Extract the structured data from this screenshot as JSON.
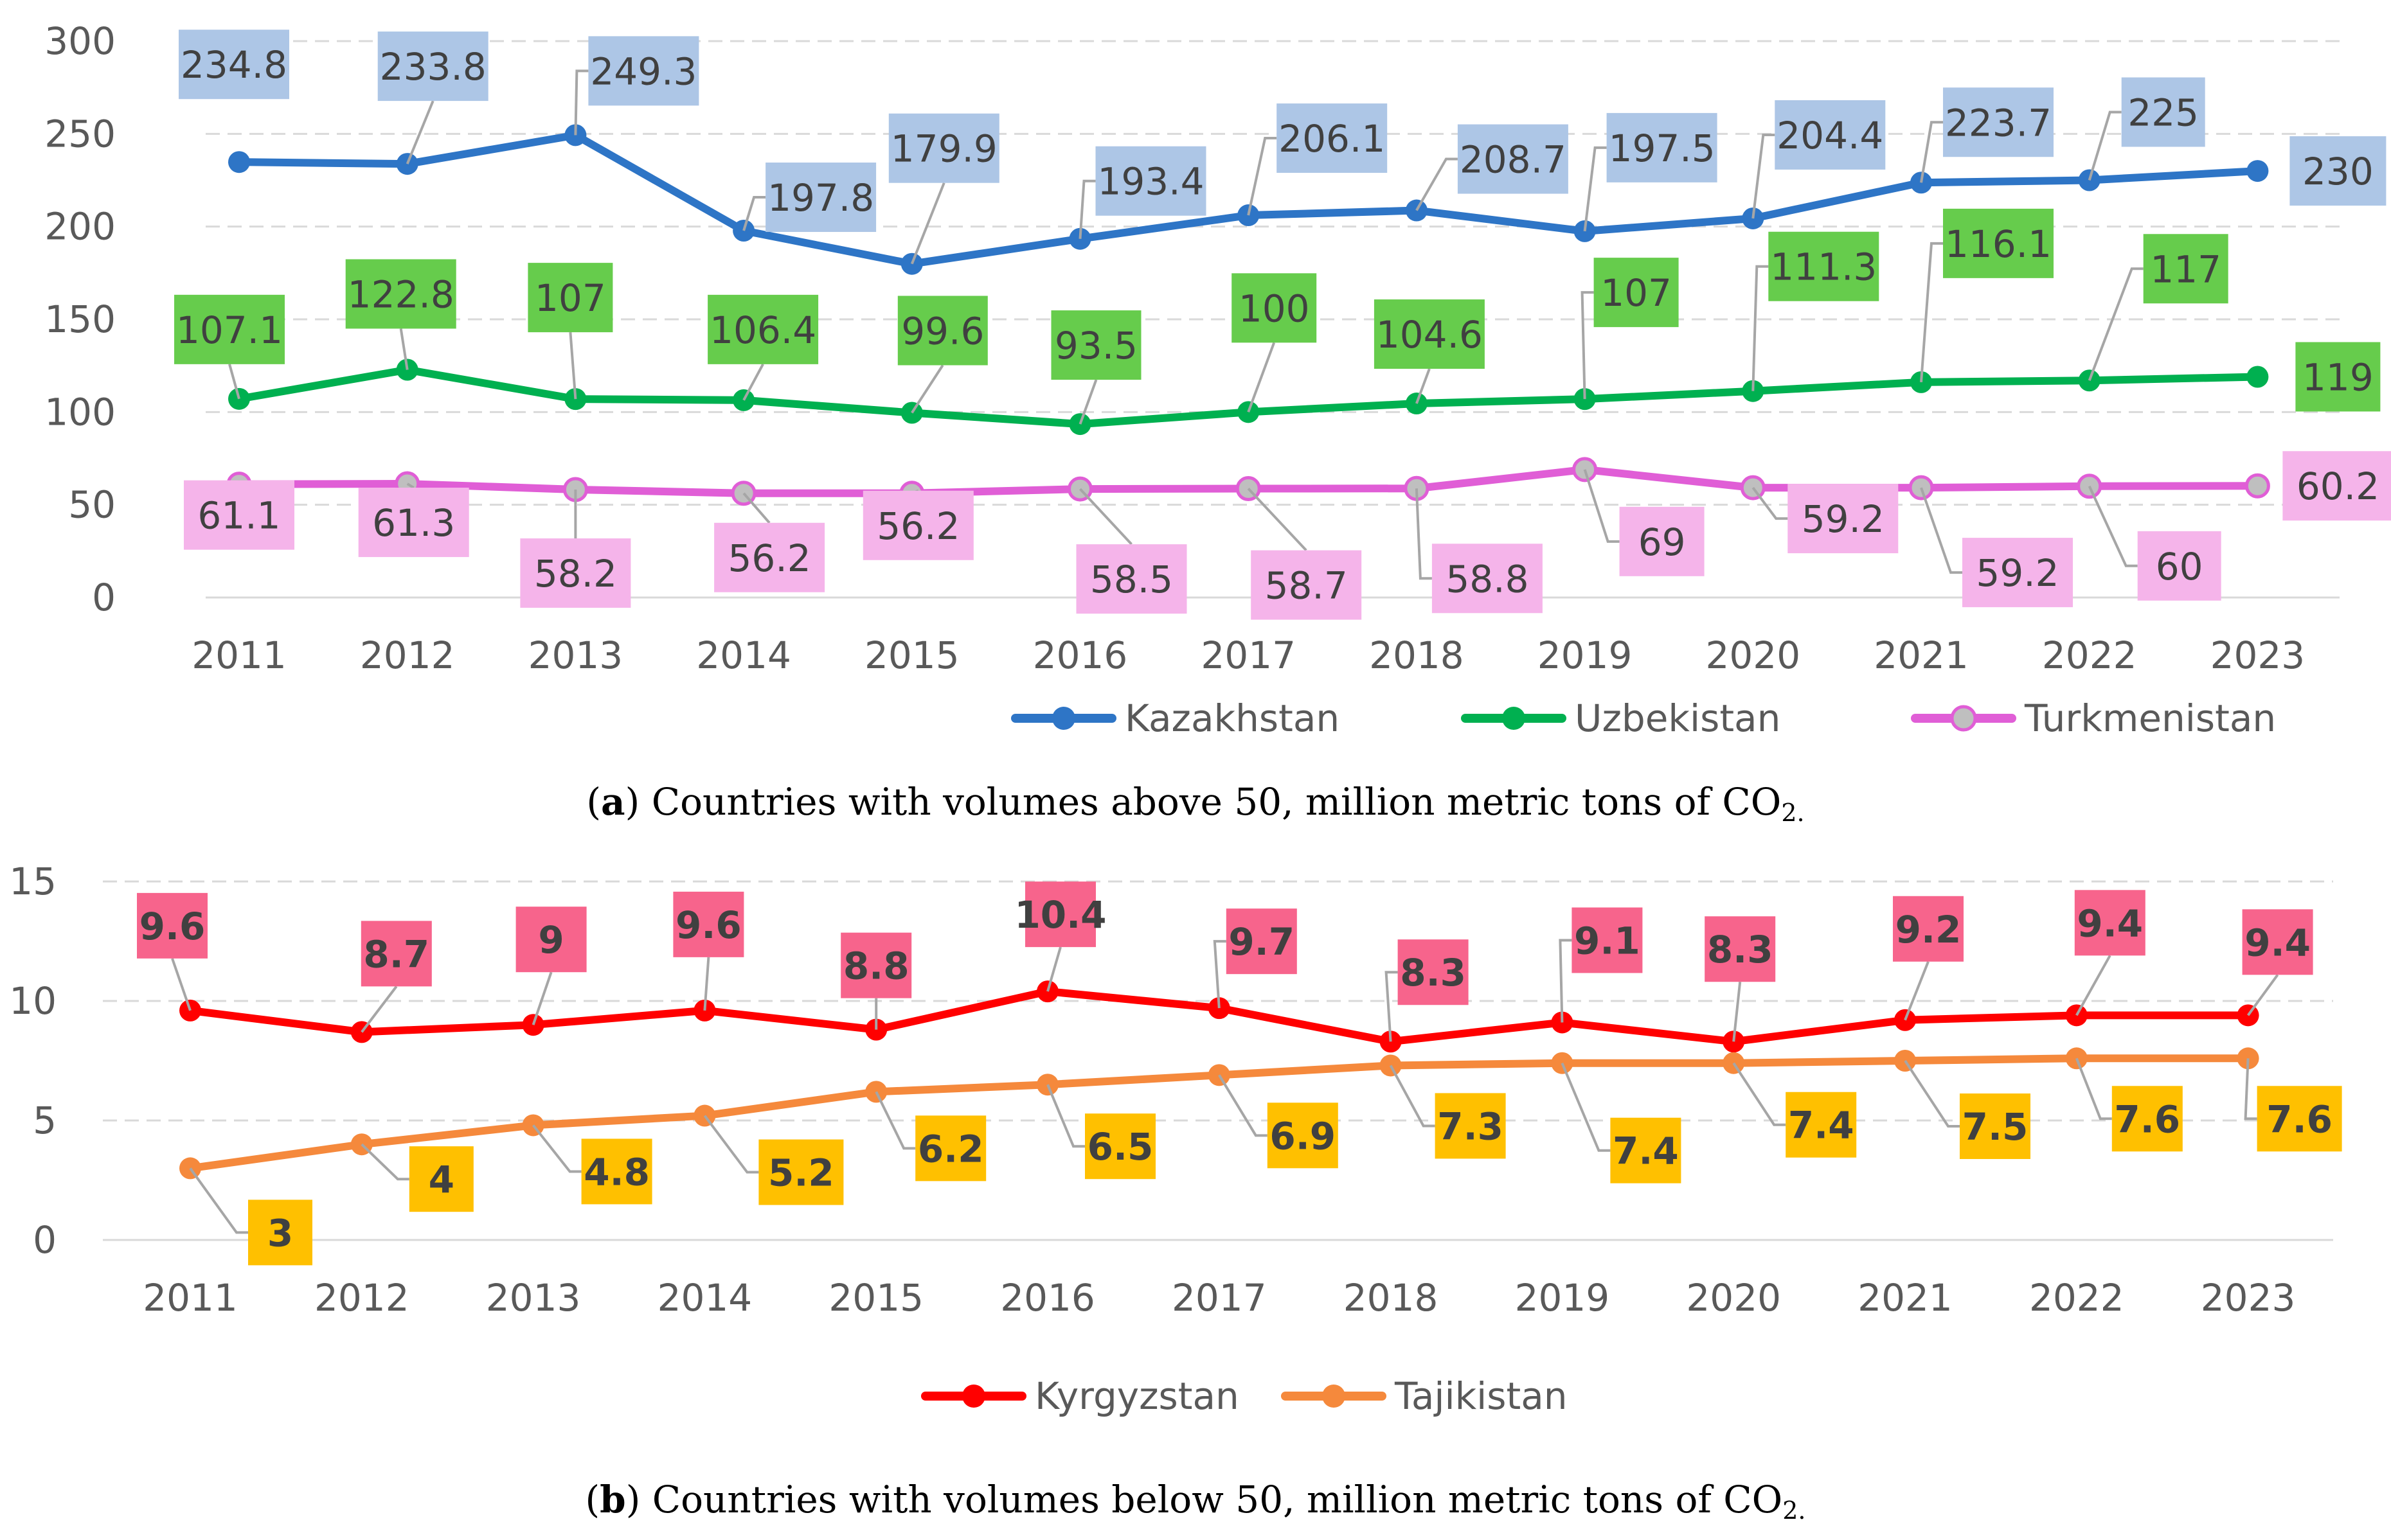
{
  "colors": {
    "grid": "#d9d9d9",
    "axis": "#d9d9d9",
    "tick_text": "#595959",
    "label_text": "#404040",
    "leader": "#a6a6a6"
  },
  "chart_data": [
    {
      "type": "line",
      "caption": {
        "letter": "a",
        "open": "(",
        "close": ")",
        "text": " Countries with volumes above 50, million metric tons of CO",
        "subscript": "2.",
        "suffix": ""
      },
      "categories": [
        "2011",
        "2012",
        "2013",
        "2014",
        "2015",
        "2016",
        "2017",
        "2018",
        "2019",
        "2020",
        "2021",
        "2022",
        "2023"
      ],
      "ylim": [
        0,
        300
      ],
      "yticks": [
        0,
        50,
        100,
        150,
        200,
        250,
        300
      ],
      "grid": true,
      "legend": "bottom",
      "series": [
        {
          "name": "Kazakhstan",
          "color": "#2e75c6",
          "label_bg": "#adc6e6",
          "label_color": "#404040",
          "values": [
            234.8,
            233.8,
            249.3,
            197.8,
            179.9,
            193.4,
            206.1,
            208.7,
            197.5,
            204.4,
            223.7,
            225,
            230
          ]
        },
        {
          "name": "Uzbekistan",
          "color": "#00b050",
          "label_bg": "#66cc4c",
          "label_color": "#404040",
          "values": [
            107.1,
            122.8,
            107,
            106.4,
            99.6,
            93.5,
            100,
            104.6,
            107,
            111.3,
            116.1,
            117,
            119
          ]
        },
        {
          "name": "Turkmenistan",
          "color": "#e05ed6",
          "marker_fill": "#bfbfbf",
          "label_bg": "#f5b4ea",
          "label_color": "#404040",
          "values": [
            61.1,
            61.3,
            58.2,
            56.2,
            56.2,
            58.5,
            58.7,
            58.8,
            69,
            59.2,
            59.2,
            60,
            60.2
          ]
        }
      ]
    },
    {
      "type": "line",
      "caption": {
        "letter": "b",
        "open": "(",
        "close": ")",
        "text": " Countries with volumes below 50, million metric tons of CO",
        "subscript": "2.",
        "suffix": ""
      },
      "categories": [
        "2011",
        "2012",
        "2013",
        "2014",
        "2015",
        "2016",
        "2017",
        "2018",
        "2019",
        "2020",
        "2021",
        "2022",
        "2023"
      ],
      "ylim": [
        0,
        15
      ],
      "yticks": [
        0,
        5,
        10,
        15
      ],
      "grid": true,
      "legend": "bottom",
      "series": [
        {
          "name": "Kyrgyzstan",
          "color": "#ff0000",
          "label_bg": "#f7648c",
          "label_color": "#404040",
          "values": [
            9.6,
            8.7,
            9,
            9.6,
            8.8,
            10.4,
            9.7,
            8.3,
            9.1,
            8.3,
            9.2,
            9.4,
            9.4
          ]
        },
        {
          "name": "Tajikistan",
          "color": "#f5893c",
          "label_bg": "#ffc000",
          "label_color": "#404040",
          "values": [
            3,
            4,
            4.8,
            5.2,
            6.2,
            6.5,
            6.9,
            7.3,
            7.4,
            7.4,
            7.5,
            7.6,
            7.6
          ]
        }
      ]
    }
  ]
}
